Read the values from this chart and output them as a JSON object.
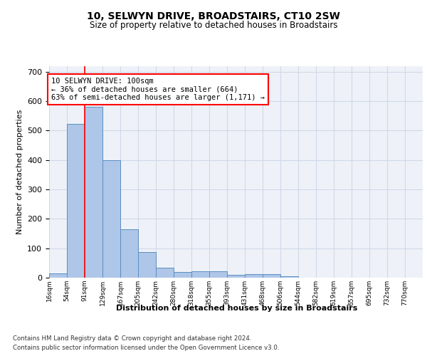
{
  "title": "10, SELWYN DRIVE, BROADSTAIRS, CT10 2SW",
  "subtitle": "Size of property relative to detached houses in Broadstairs",
  "xlabel": "Distribution of detached houses by size in Broadstairs",
  "ylabel": "Number of detached properties",
  "bin_labels": [
    "16sqm",
    "54sqm",
    "91sqm",
    "129sqm",
    "167sqm",
    "205sqm",
    "242sqm",
    "280sqm",
    "318sqm",
    "355sqm",
    "393sqm",
    "431sqm",
    "468sqm",
    "506sqm",
    "544sqm",
    "582sqm",
    "619sqm",
    "657sqm",
    "695sqm",
    "732sqm",
    "770sqm"
  ],
  "bar_heights": [
    14,
    522,
    580,
    400,
    165,
    87,
    33,
    20,
    22,
    22,
    9,
    12,
    12,
    5,
    0,
    0,
    0,
    0,
    0,
    0,
    0
  ],
  "bar_color": "#aec6e8",
  "bar_edge_color": "#5a8fc2",
  "grid_color": "#d0d8e8",
  "background_color": "#eef2f8",
  "red_line_index": 2,
  "annotation_lines": [
    "10 SELWYN DRIVE: 100sqm",
    "← 36% of detached houses are smaller (664)",
    "63% of semi-detached houses are larger (1,171) →"
  ],
  "ylim": [
    0,
    720
  ],
  "yticks": [
    0,
    100,
    200,
    300,
    400,
    500,
    600,
    700
  ],
  "footer_line1": "Contains HM Land Registry data © Crown copyright and database right 2024.",
  "footer_line2": "Contains public sector information licensed under the Open Government Licence v3.0."
}
